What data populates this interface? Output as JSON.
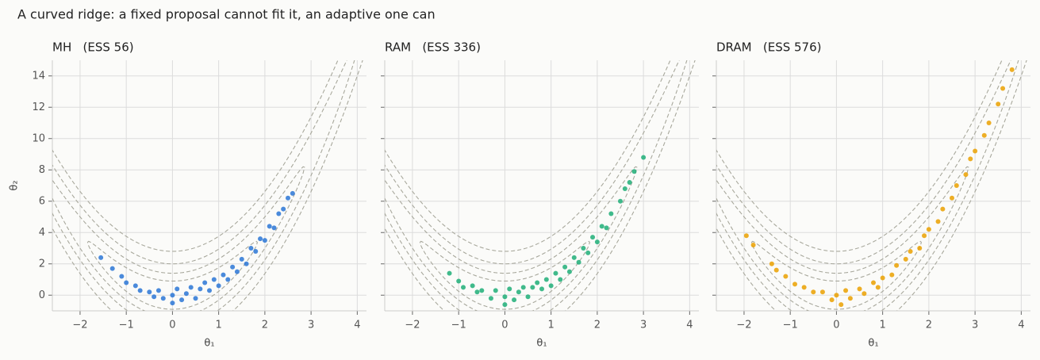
{
  "title": "A curved ridge: a fixed proposal cannot fit it, an adaptive one can",
  "chart_data": [
    {
      "type": "scatter",
      "title": "MH   (ESS 56)",
      "x_label": "θ₁",
      "y_label": "θ₂",
      "color": "#2a76d6",
      "x": [
        -1.55,
        -1.3,
        -1.1,
        -1.0,
        -0.8,
        -0.7,
        -0.5,
        -0.4,
        -0.3,
        -0.2,
        0,
        0,
        0.1,
        0.2,
        0.3,
        0.4,
        0.5,
        0.6,
        0.7,
        0.8,
        0.9,
        1.0,
        1.1,
        1.2,
        1.3,
        1.4,
        1.5,
        1.6,
        1.7,
        1.8,
        1.9,
        2.0,
        2.1,
        2.2,
        2.3,
        2.4,
        2.5,
        2.6
      ],
      "values": [
        2.4,
        1.7,
        1.2,
        0.8,
        0.6,
        0.3,
        0.2,
        -0.1,
        0.3,
        -0.2,
        0,
        -0.5,
        0.4,
        -0.3,
        0.1,
        0.5,
        -0.2,
        0.4,
        0.8,
        0.3,
        1.0,
        0.6,
        1.3,
        1.0,
        1.8,
        1.5,
        2.3,
        2.0,
        3.0,
        2.8,
        3.6,
        3.5,
        4.4,
        4.3,
        5.2,
        5.5,
        6.2,
        6.5
      ],
      "xlim": [
        -2.6,
        4.2
      ],
      "ylim": [
        -1,
        15
      ],
      "xticks": [
        {
          "value": -2,
          "label": "−2"
        },
        {
          "value": -1,
          "label": "−1"
        },
        0,
        1,
        2,
        3,
        4
      ],
      "yticks": [
        0,
        2,
        4,
        6,
        8,
        10,
        12,
        14
      ],
      "grid": true
    },
    {
      "type": "scatter",
      "title": "RAM   (ESS 336)",
      "x_label": "θ₁",
      "color": "#1fae78",
      "x": [
        -1.2,
        -1.0,
        -0.9,
        -0.7,
        -0.6,
        -0.5,
        -0.3,
        -0.2,
        0,
        0,
        0.1,
        0.2,
        0.3,
        0.4,
        0.5,
        0.6,
        0.7,
        0.8,
        0.9,
        1.0,
        1.1,
        1.2,
        1.3,
        1.4,
        1.5,
        1.6,
        1.7,
        1.8,
        1.9,
        2.0,
        2.1,
        2.2,
        2.3,
        2.5,
        2.6,
        2.7,
        2.8,
        3.0
      ],
      "values": [
        1.4,
        0.9,
        0.5,
        0.6,
        0.2,
        0.3,
        -0.2,
        0.3,
        -0.1,
        -0.6,
        0.4,
        -0.3,
        0.2,
        0.5,
        -0.1,
        0.5,
        0.8,
        0.4,
        1.0,
        0.6,
        1.4,
        1.0,
        1.8,
        1.5,
        2.4,
        2.1,
        3.0,
        2.7,
        3.7,
        3.4,
        4.4,
        4.3,
        5.2,
        6.0,
        6.8,
        7.2,
        7.9,
        8.8
      ],
      "xlim": [
        -2.6,
        4.2
      ],
      "ylim": [
        -1,
        15
      ],
      "xticks": [
        {
          "value": -2,
          "label": "−2"
        },
        {
          "value": -1,
          "label": "−1"
        },
        0,
        1,
        2,
        3,
        4
      ],
      "yticks": [
        0,
        2,
        4,
        6,
        8,
        10,
        12,
        14
      ],
      "grid": true
    },
    {
      "type": "scatter",
      "title": "DRAM   (ESS 576)",
      "x_label": "θ₁",
      "color": "#eaa000",
      "x": [
        -1.95,
        -1.8,
        -1.4,
        -1.3,
        -1.1,
        -0.9,
        -0.7,
        -0.5,
        -0.3,
        -0.1,
        0,
        0.1,
        0.2,
        0.3,
        0.5,
        0.6,
        0.8,
        0.9,
        1.0,
        1.2,
        1.3,
        1.5,
        1.6,
        1.8,
        1.9,
        2.0,
        2.2,
        2.3,
        2.5,
        2.6,
        2.8,
        2.9,
        3.0,
        3.2,
        3.3,
        3.5,
        3.6,
        3.8
      ],
      "values": [
        3.8,
        3.2,
        2.0,
        1.6,
        1.2,
        0.7,
        0.5,
        0.2,
        0.2,
        -0.3,
        0,
        -0.6,
        0.3,
        -0.2,
        0.4,
        0.1,
        0.8,
        0.5,
        1.1,
        1.3,
        1.9,
        2.3,
        2.8,
        3.0,
        3.8,
        4.2,
        4.7,
        5.5,
        6.2,
        7.0,
        7.7,
        8.7,
        9.2,
        10.2,
        11.0,
        12.2,
        13.2,
        14.4
      ],
      "xlim": [
        -2.6,
        4.2
      ],
      "ylim": [
        -1,
        15
      ],
      "xticks": [
        {
          "value": -2,
          "label": "−2"
        },
        {
          "value": -1,
          "label": "−1"
        },
        0,
        1,
        2,
        3,
        4
      ],
      "yticks": [
        0,
        2,
        4,
        6,
        8,
        10,
        12,
        14
      ],
      "grid": true
    }
  ]
}
